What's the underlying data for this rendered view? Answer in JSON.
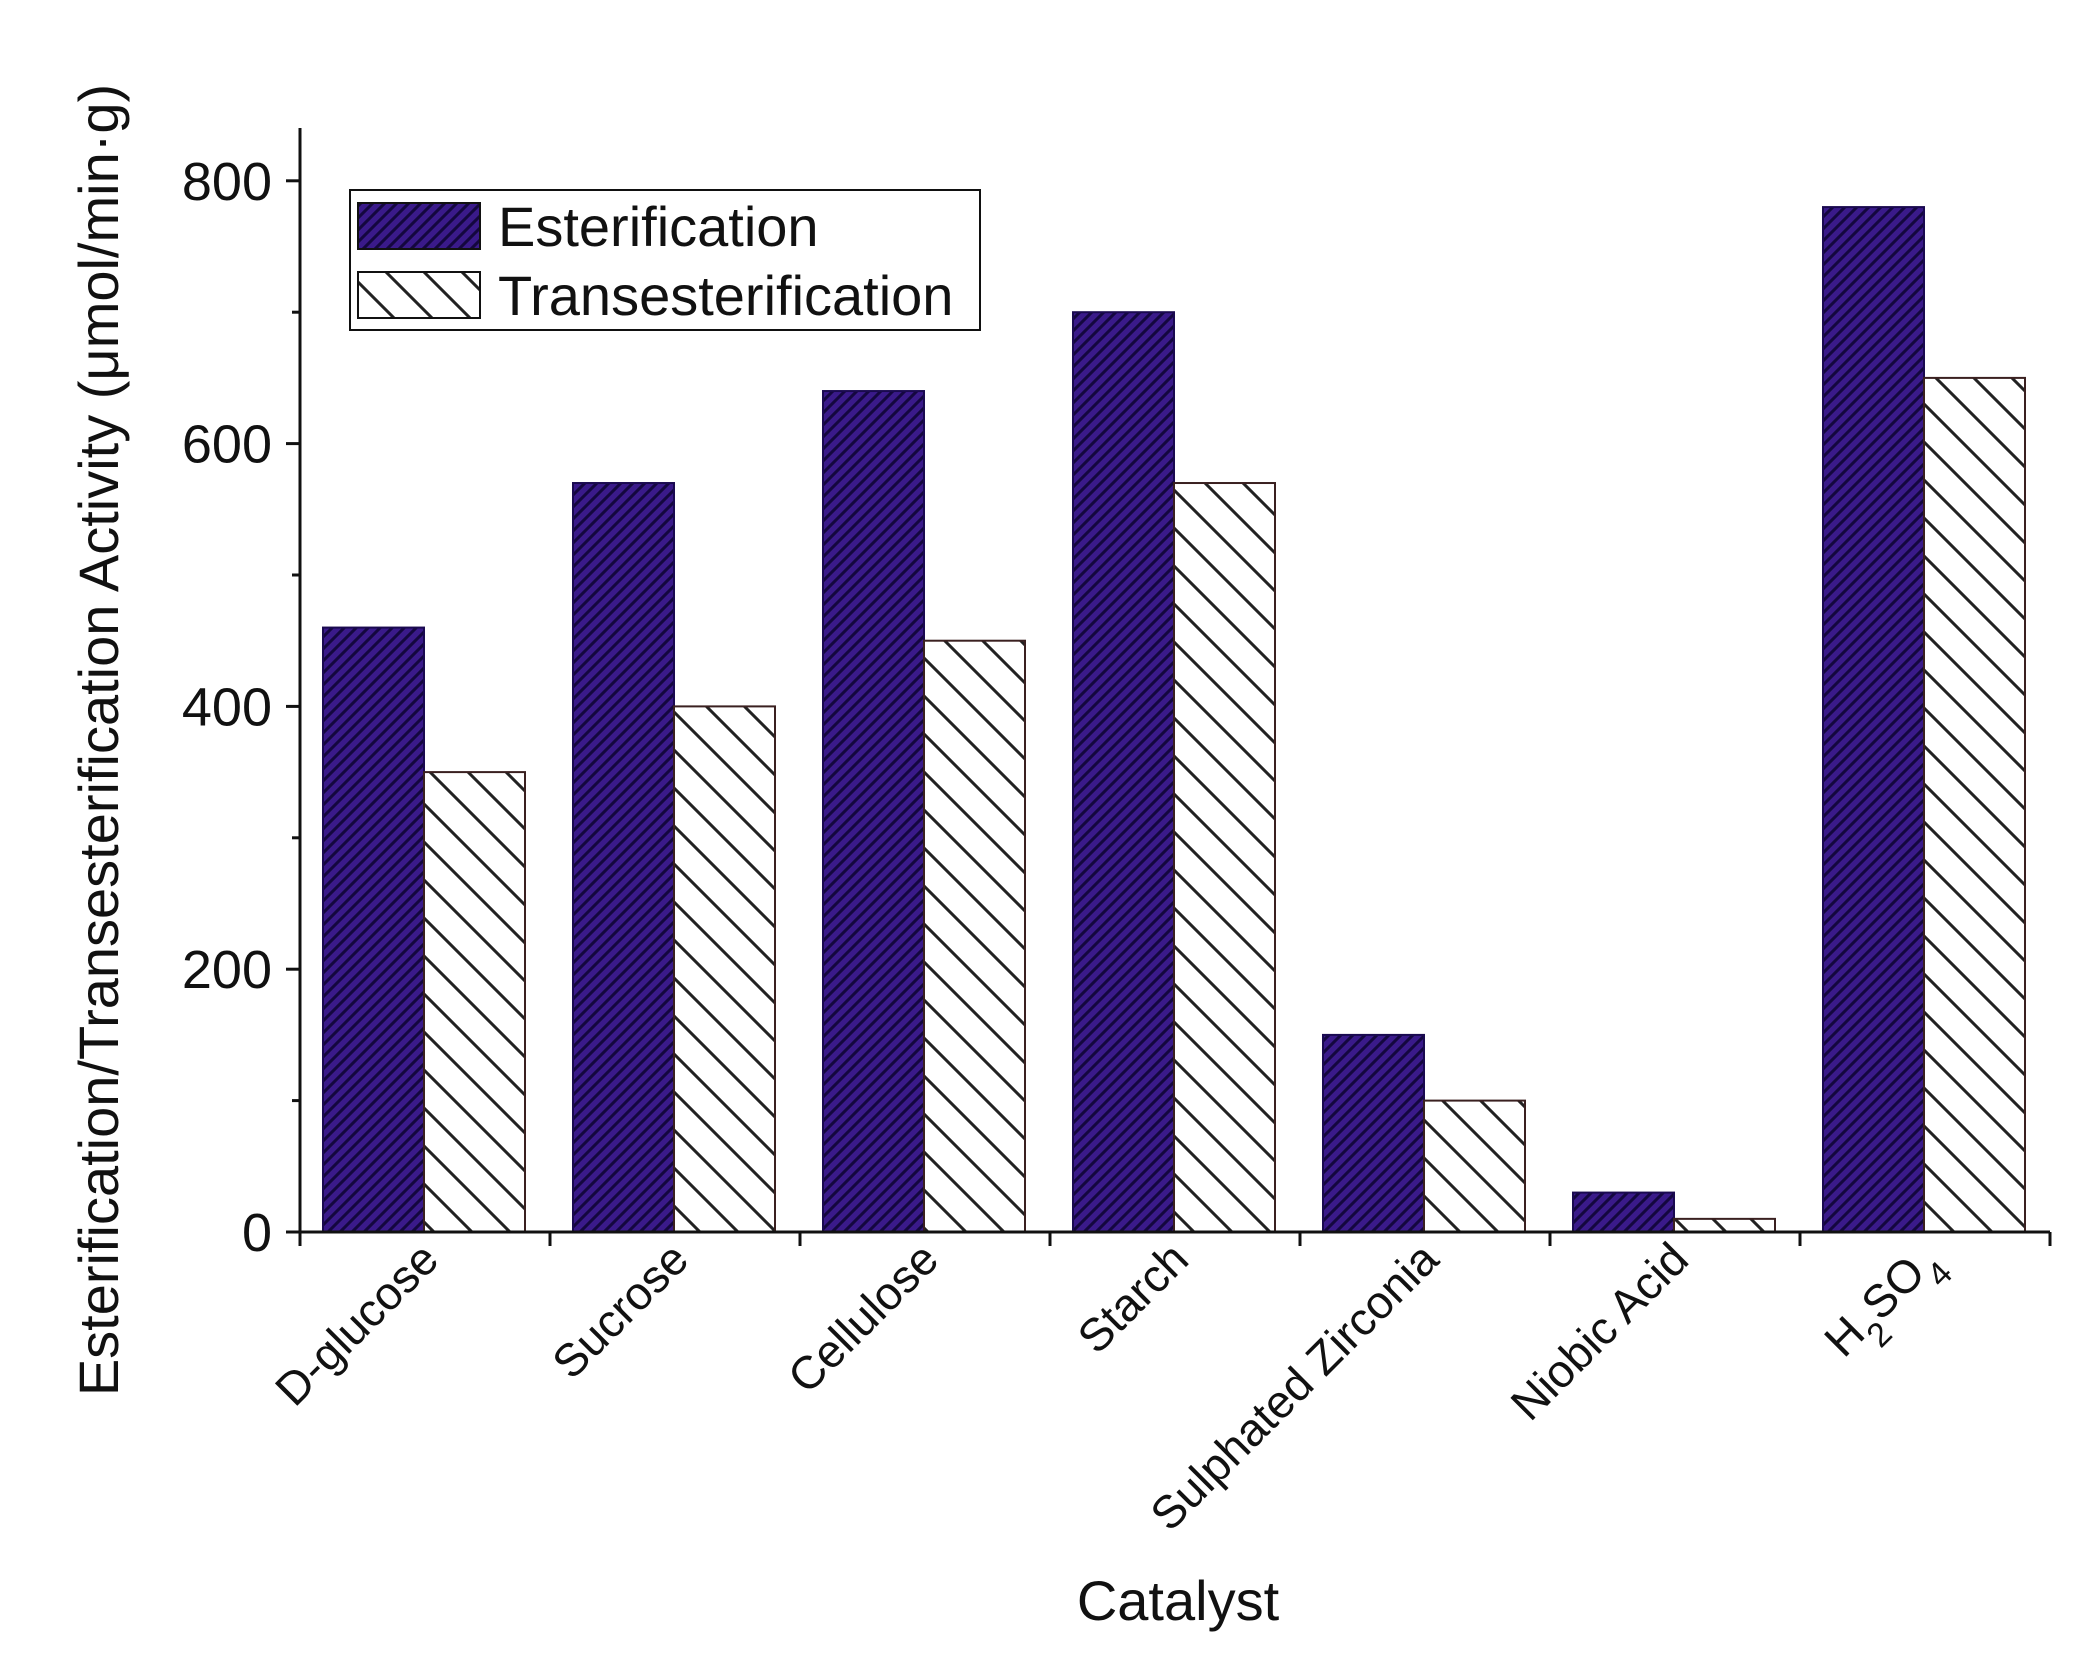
{
  "chart_data": {
    "type": "bar",
    "title": "",
    "xlabel": "Catalyst",
    "ylabel": "Esterification/Transesterification Activity (μmol/min·g)",
    "categories": [
      "D-glucose",
      "Sucrose",
      "Cellulose",
      "Starch",
      "Sulphated Zirconia",
      "Niobic Acid",
      "H2SO4"
    ],
    "series": [
      {
        "name": "Esterification",
        "values": [
          460,
          570,
          640,
          700,
          150,
          30,
          780
        ],
        "color": "#3a1a8a",
        "pattern": "dense-diagonal"
      },
      {
        "name": "Transesterification",
        "values": [
          350,
          400,
          450,
          570,
          100,
          10,
          650
        ],
        "color": "#ffffff",
        "pattern": "sparse-back-diagonal"
      }
    ],
    "ylim": [
      0,
      840
    ],
    "yticks": [
      0,
      200,
      400,
      600,
      800
    ],
    "legend_position": "top-left",
    "grid": false
  }
}
